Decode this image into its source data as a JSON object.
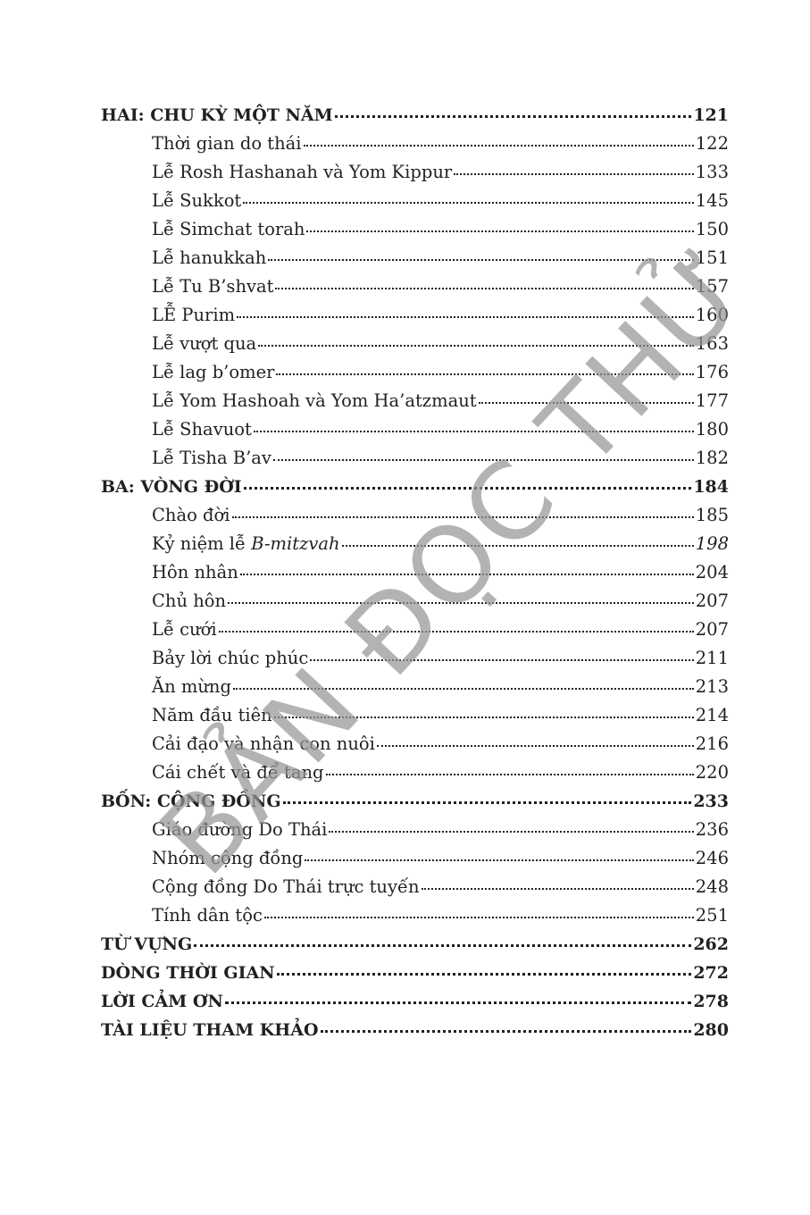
{
  "toc": [
    {
      "level": "head",
      "title": "HAI: CHU KỲ MỘT NĂM",
      "page": "121"
    },
    {
      "level": "sub",
      "title": "Thời gian do thái",
      "page": "122"
    },
    {
      "level": "sub",
      "title": "Lễ Rosh Hashanah và Yom Kippur",
      "page": "133"
    },
    {
      "level": "sub",
      "title": "Lễ Sukkot",
      "page": "145"
    },
    {
      "level": "sub",
      "title": "Lễ Simchat torah",
      "page": "150"
    },
    {
      "level": "sub",
      "title": "Lễ hanukkah",
      "page": "151"
    },
    {
      "level": "sub",
      "title": "Lễ Tu B’shvat",
      "page": "157"
    },
    {
      "level": "sub",
      "title": "LỄ Purim",
      "page": "160"
    },
    {
      "level": "sub",
      "title": "Lễ vượt qua",
      "page": "163"
    },
    {
      "level": "sub",
      "title": "Lễ lag b’omer",
      "page": "176"
    },
    {
      "level": "sub",
      "title": "Lễ Yom Hashoah và Yom Ha’atzmaut",
      "page": "177"
    },
    {
      "level": "sub",
      "title": "Lễ Shavuot",
      "page": "180"
    },
    {
      "level": "sub",
      "title": "Lễ Tisha B’av",
      "page": "182"
    },
    {
      "level": "head",
      "title": "BA: VÒNG ĐỜI",
      "page": "184"
    },
    {
      "level": "sub",
      "title": "Chào đời",
      "page": "185"
    },
    {
      "level": "sub",
      "title": "Kỷ niệm lễ ",
      "title_italic": "B-mitzvah",
      "page": "198",
      "page_italic": true
    },
    {
      "level": "sub",
      "title": "Hôn nhân",
      "page": "204"
    },
    {
      "level": "sub",
      "title": "Chủ hôn",
      "page": "207"
    },
    {
      "level": "sub",
      "title": "Lễ cưới",
      "page": "207"
    },
    {
      "level": "sub",
      "title": "Bảy lời chúc phúc",
      "page": "211"
    },
    {
      "level": "sub",
      "title": "Ăn mừng",
      "page": "213"
    },
    {
      "level": "sub",
      "title": "Năm đầu tiên",
      "page": "214"
    },
    {
      "level": "sub",
      "title": "Cải đạo và nhận con nuôi",
      "page": "216"
    },
    {
      "level": "sub",
      "title": "Cái chết và để tang",
      "page": "220"
    },
    {
      "level": "head",
      "title": "BỐN: CỘNG ĐỒNG",
      "page": "233"
    },
    {
      "level": "sub",
      "title": "Giáo đường Do Thái",
      "page": "236"
    },
    {
      "level": "sub",
      "title": "Nhóm cộng đồng",
      "page": "246"
    },
    {
      "level": "sub",
      "title": "Cộng đồng Do Thái trực tuyến",
      "page": "248"
    },
    {
      "level": "sub",
      "title": "Tính dân tộc",
      "page": "251"
    },
    {
      "level": "head",
      "title": "TỪ VỰNG",
      "page": "262"
    },
    {
      "level": "head",
      "title": "DÒNG THỜI GIAN",
      "page": "272"
    },
    {
      "level": "head",
      "title": "LỜI CẢM ƠN",
      "page": "278"
    },
    {
      "level": "head",
      "title": "TÀI LIỆU THAM KHẢO",
      "page": "280"
    }
  ],
  "watermark": "BẢN ĐỌC THỬ",
  "colors": {
    "text": "#231f20",
    "watermark": "#969696"
  }
}
